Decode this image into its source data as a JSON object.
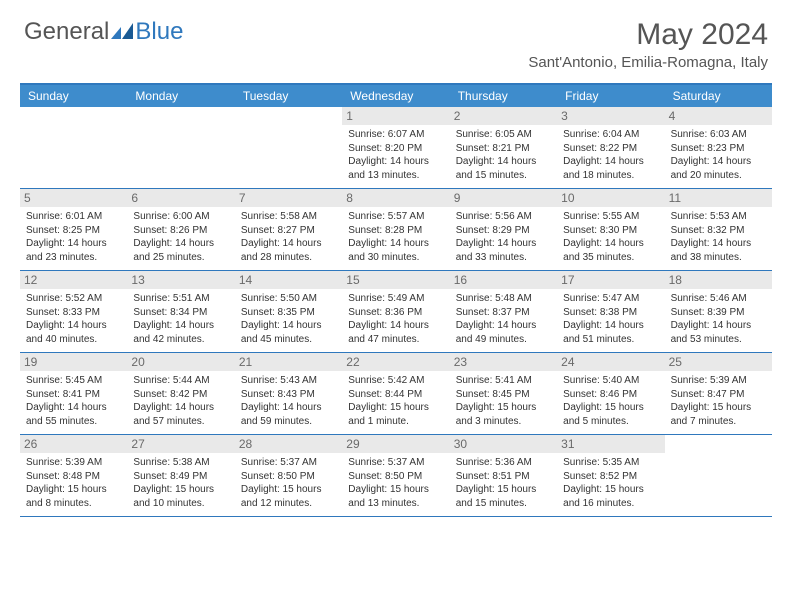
{
  "logo": {
    "general": "General",
    "blue": "Blue"
  },
  "title": "May 2024",
  "location": "Sant'Antonio, Emilia-Romagna, Italy",
  "colors": {
    "header_bg": "#3e8ccc",
    "border": "#2f78bd",
    "daynum_bg": "#e9e9e9",
    "text": "#333333",
    "title_text": "#555555"
  },
  "day_headers": [
    "Sunday",
    "Monday",
    "Tuesday",
    "Wednesday",
    "Thursday",
    "Friday",
    "Saturday"
  ],
  "weeks": [
    [
      {
        "blank": true
      },
      {
        "blank": true
      },
      {
        "blank": true
      },
      {
        "day": "1",
        "sunrise": "Sunrise: 6:07 AM",
        "sunset": "Sunset: 8:20 PM",
        "daylight1": "Daylight: 14 hours",
        "daylight2": "and 13 minutes."
      },
      {
        "day": "2",
        "sunrise": "Sunrise: 6:05 AM",
        "sunset": "Sunset: 8:21 PM",
        "daylight1": "Daylight: 14 hours",
        "daylight2": "and 15 minutes."
      },
      {
        "day": "3",
        "sunrise": "Sunrise: 6:04 AM",
        "sunset": "Sunset: 8:22 PM",
        "daylight1": "Daylight: 14 hours",
        "daylight2": "and 18 minutes."
      },
      {
        "day": "4",
        "sunrise": "Sunrise: 6:03 AM",
        "sunset": "Sunset: 8:23 PM",
        "daylight1": "Daylight: 14 hours",
        "daylight2": "and 20 minutes."
      }
    ],
    [
      {
        "day": "5",
        "sunrise": "Sunrise: 6:01 AM",
        "sunset": "Sunset: 8:25 PM",
        "daylight1": "Daylight: 14 hours",
        "daylight2": "and 23 minutes."
      },
      {
        "day": "6",
        "sunrise": "Sunrise: 6:00 AM",
        "sunset": "Sunset: 8:26 PM",
        "daylight1": "Daylight: 14 hours",
        "daylight2": "and 25 minutes."
      },
      {
        "day": "7",
        "sunrise": "Sunrise: 5:58 AM",
        "sunset": "Sunset: 8:27 PM",
        "daylight1": "Daylight: 14 hours",
        "daylight2": "and 28 minutes."
      },
      {
        "day": "8",
        "sunrise": "Sunrise: 5:57 AM",
        "sunset": "Sunset: 8:28 PM",
        "daylight1": "Daylight: 14 hours",
        "daylight2": "and 30 minutes."
      },
      {
        "day": "9",
        "sunrise": "Sunrise: 5:56 AM",
        "sunset": "Sunset: 8:29 PM",
        "daylight1": "Daylight: 14 hours",
        "daylight2": "and 33 minutes."
      },
      {
        "day": "10",
        "sunrise": "Sunrise: 5:55 AM",
        "sunset": "Sunset: 8:30 PM",
        "daylight1": "Daylight: 14 hours",
        "daylight2": "and 35 minutes."
      },
      {
        "day": "11",
        "sunrise": "Sunrise: 5:53 AM",
        "sunset": "Sunset: 8:32 PM",
        "daylight1": "Daylight: 14 hours",
        "daylight2": "and 38 minutes."
      }
    ],
    [
      {
        "day": "12",
        "sunrise": "Sunrise: 5:52 AM",
        "sunset": "Sunset: 8:33 PM",
        "daylight1": "Daylight: 14 hours",
        "daylight2": "and 40 minutes."
      },
      {
        "day": "13",
        "sunrise": "Sunrise: 5:51 AM",
        "sunset": "Sunset: 8:34 PM",
        "daylight1": "Daylight: 14 hours",
        "daylight2": "and 42 minutes."
      },
      {
        "day": "14",
        "sunrise": "Sunrise: 5:50 AM",
        "sunset": "Sunset: 8:35 PM",
        "daylight1": "Daylight: 14 hours",
        "daylight2": "and 45 minutes."
      },
      {
        "day": "15",
        "sunrise": "Sunrise: 5:49 AM",
        "sunset": "Sunset: 8:36 PM",
        "daylight1": "Daylight: 14 hours",
        "daylight2": "and 47 minutes."
      },
      {
        "day": "16",
        "sunrise": "Sunrise: 5:48 AM",
        "sunset": "Sunset: 8:37 PM",
        "daylight1": "Daylight: 14 hours",
        "daylight2": "and 49 minutes."
      },
      {
        "day": "17",
        "sunrise": "Sunrise: 5:47 AM",
        "sunset": "Sunset: 8:38 PM",
        "daylight1": "Daylight: 14 hours",
        "daylight2": "and 51 minutes."
      },
      {
        "day": "18",
        "sunrise": "Sunrise: 5:46 AM",
        "sunset": "Sunset: 8:39 PM",
        "daylight1": "Daylight: 14 hours",
        "daylight2": "and 53 minutes."
      }
    ],
    [
      {
        "day": "19",
        "sunrise": "Sunrise: 5:45 AM",
        "sunset": "Sunset: 8:41 PM",
        "daylight1": "Daylight: 14 hours",
        "daylight2": "and 55 minutes."
      },
      {
        "day": "20",
        "sunrise": "Sunrise: 5:44 AM",
        "sunset": "Sunset: 8:42 PM",
        "daylight1": "Daylight: 14 hours",
        "daylight2": "and 57 minutes."
      },
      {
        "day": "21",
        "sunrise": "Sunrise: 5:43 AM",
        "sunset": "Sunset: 8:43 PM",
        "daylight1": "Daylight: 14 hours",
        "daylight2": "and 59 minutes."
      },
      {
        "day": "22",
        "sunrise": "Sunrise: 5:42 AM",
        "sunset": "Sunset: 8:44 PM",
        "daylight1": "Daylight: 15 hours",
        "daylight2": "and 1 minute."
      },
      {
        "day": "23",
        "sunrise": "Sunrise: 5:41 AM",
        "sunset": "Sunset: 8:45 PM",
        "daylight1": "Daylight: 15 hours",
        "daylight2": "and 3 minutes."
      },
      {
        "day": "24",
        "sunrise": "Sunrise: 5:40 AM",
        "sunset": "Sunset: 8:46 PM",
        "daylight1": "Daylight: 15 hours",
        "daylight2": "and 5 minutes."
      },
      {
        "day": "25",
        "sunrise": "Sunrise: 5:39 AM",
        "sunset": "Sunset: 8:47 PM",
        "daylight1": "Daylight: 15 hours",
        "daylight2": "and 7 minutes."
      }
    ],
    [
      {
        "day": "26",
        "sunrise": "Sunrise: 5:39 AM",
        "sunset": "Sunset: 8:48 PM",
        "daylight1": "Daylight: 15 hours",
        "daylight2": "and 8 minutes."
      },
      {
        "day": "27",
        "sunrise": "Sunrise: 5:38 AM",
        "sunset": "Sunset: 8:49 PM",
        "daylight1": "Daylight: 15 hours",
        "daylight2": "and 10 minutes."
      },
      {
        "day": "28",
        "sunrise": "Sunrise: 5:37 AM",
        "sunset": "Sunset: 8:50 PM",
        "daylight1": "Daylight: 15 hours",
        "daylight2": "and 12 minutes."
      },
      {
        "day": "29",
        "sunrise": "Sunrise: 5:37 AM",
        "sunset": "Sunset: 8:50 PM",
        "daylight1": "Daylight: 15 hours",
        "daylight2": "and 13 minutes."
      },
      {
        "day": "30",
        "sunrise": "Sunrise: 5:36 AM",
        "sunset": "Sunset: 8:51 PM",
        "daylight1": "Daylight: 15 hours",
        "daylight2": "and 15 minutes."
      },
      {
        "day": "31",
        "sunrise": "Sunrise: 5:35 AM",
        "sunset": "Sunset: 8:52 PM",
        "daylight1": "Daylight: 15 hours",
        "daylight2": "and 16 minutes."
      },
      {
        "blank": true
      }
    ]
  ]
}
